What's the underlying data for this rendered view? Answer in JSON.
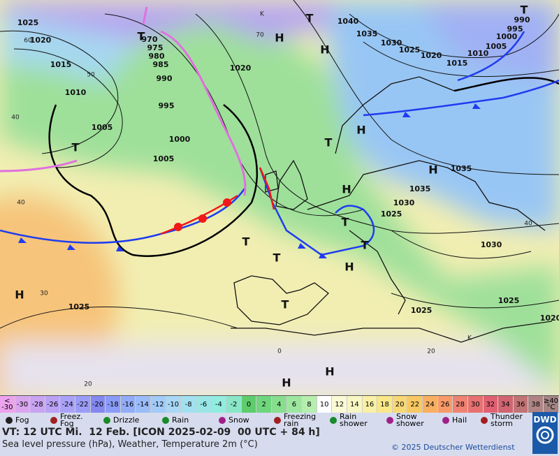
{
  "map": {
    "pressure_labels": [
      1025,
      1020,
      1015,
      1010,
      1005,
      1000,
      995,
      990,
      985,
      980,
      975,
      970,
      1005,
      1020,
      1040,
      1035,
      1030,
      1025,
      1020,
      1015,
      1010,
      1005,
      1000,
      995,
      990,
      1035,
      1035,
      1030,
      1025,
      1030,
      1025,
      1025,
      1025,
      1020
    ],
    "temperature_labels": [
      70,
      60,
      50,
      40,
      40,
      30,
      20,
      0,
      20,
      40
    ],
    "highs": [
      "H",
      "H",
      "H",
      "H",
      "H",
      "H",
      "H",
      "H",
      "H"
    ],
    "lows": [
      "T",
      "T",
      "T",
      "T",
      "T",
      "T",
      "T",
      "T",
      "T",
      "T"
    ],
    "other_labels": [
      "K",
      "K"
    ]
  },
  "legend": {
    "below_label": "<\n-30",
    "values": [
      -30,
      -28,
      -26,
      -24,
      -22,
      -20,
      -18,
      -16,
      -14,
      -12,
      -10,
      -8,
      -6,
      -4,
      -2,
      0,
      2,
      4,
      6,
      8,
      10,
      12,
      14,
      16,
      18,
      20,
      22,
      24,
      26,
      28,
      30,
      32,
      34,
      36,
      38
    ],
    "colors": [
      "#d9a6ee",
      "#c9a4f2",
      "#b9a2f4",
      "#a9a2f8",
      "#9a9cf8",
      "#8488f0",
      "#8a9cf8",
      "#92acf8",
      "#9abcf8",
      "#a2cbf8",
      "#a8d8f6",
      "#a2e0f0",
      "#9ae6e6",
      "#92ece0",
      "#8ae6c8",
      "#5ecc6c",
      "#6ed67c",
      "#86de8e",
      "#9ee6a0",
      "#b6eeae",
      "#ffffff",
      "#fafad4",
      "#f8f6c2",
      "#f8f0a4",
      "#f8e888",
      "#f8d874",
      "#f8c862",
      "#f8b060",
      "#f89a68",
      "#f08272",
      "#e87070",
      "#e06272",
      "#d06470",
      "#c07474",
      "#b08484"
    ],
    "below_color": "#eea2ee",
    "above_label": "≥40\n°C",
    "above_color": "#a48484",
    "weather": [
      "Fog",
      "Freez. Fog",
      "Drizzle",
      "Rain",
      "Snow",
      "Freezing rain",
      "Rain shower",
      "Snow shower",
      "Hail",
      "Thunder storm"
    ]
  },
  "footer": {
    "valid_time": "VT: 12 UTC Mi.  12 Feb. [ICON 2025-02-09  00 UTC + 84 h]",
    "description": "Sea level pressure (hPa), Weather, Temperature 2m (°C)",
    "copyright": "© 2025 Deutscher Wetterdienst",
    "logo": "DWD"
  }
}
